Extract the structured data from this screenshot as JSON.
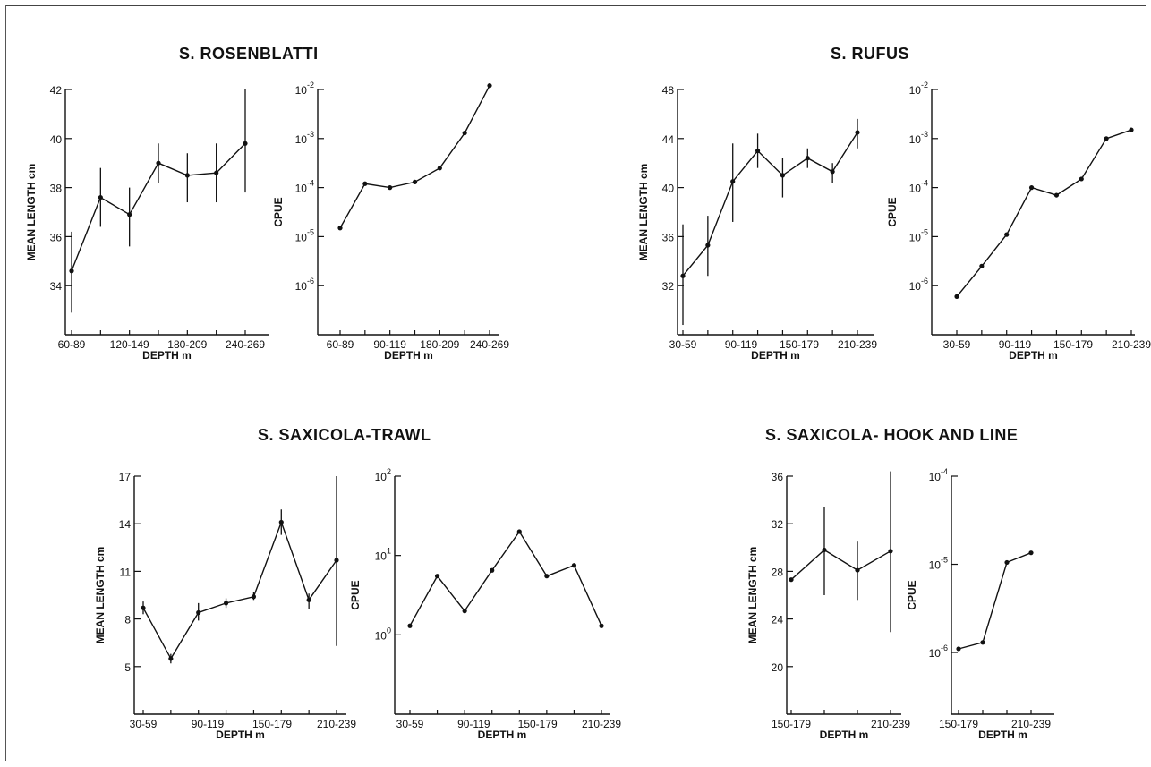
{
  "groups": [
    {
      "title": "S. ROSENBLATTI"
    },
    {
      "title": "S. RUFUS"
    },
    {
      "title": "S. SAXICOLA-TRAWL"
    },
    {
      "title": "S. SAXICOLA- HOOK AND LINE"
    }
  ],
  "chart_data": [
    {
      "id": "rosenblatti-length",
      "type": "line",
      "title": "",
      "xlabel": "DEPTH m",
      "ylabel": "MEAN LENGTH cm",
      "scale": "linear",
      "ylim": [
        32,
        42
      ],
      "yticks": [
        34,
        36,
        38,
        40,
        42
      ],
      "ytick_labels": [
        "34",
        "36",
        "38",
        "40",
        "42"
      ],
      "xtick_labels": [
        "60-89",
        "120-149",
        "180-209",
        "240-269"
      ],
      "points": [
        {
          "y": 34.6,
          "lo": 32.9,
          "hi": 36.2
        },
        {
          "y": 37.6,
          "lo": 36.4,
          "hi": 38.8
        },
        {
          "y": 36.9,
          "lo": 35.6,
          "hi": 38.0
        },
        {
          "y": 39.0,
          "lo": 38.2,
          "hi": 39.8
        },
        {
          "y": 38.5,
          "lo": 37.4,
          "hi": 39.4
        },
        {
          "y": 38.6,
          "lo": 37.4,
          "hi": 39.8
        },
        {
          "y": 39.8,
          "lo": 37.8,
          "hi": 42.0
        }
      ]
    },
    {
      "id": "rosenblatti-cpue",
      "type": "line",
      "title": "",
      "xlabel": "DEPTH m",
      "ylabel": "CPUE",
      "scale": "log",
      "ylim_exp": [
        -7,
        -2
      ],
      "yticks": [
        -6,
        -5,
        -4,
        -3,
        -2
      ],
      "ytick_labels": [
        "10-6",
        "10-5",
        "10-4",
        "10-3",
        "10-2"
      ],
      "xtick_labels": [
        "60-89",
        "90-119",
        "180-209",
        "240-269"
      ],
      "points": [
        {
          "y": 1.5e-05
        },
        {
          "y": 0.00012
        },
        {
          "y": 0.0001
        },
        {
          "y": 0.00013
        },
        {
          "y": 0.00025
        },
        {
          "y": 0.0013
        },
        {
          "y": 0.012
        }
      ]
    },
    {
      "id": "rufus-length",
      "type": "line",
      "title": "",
      "xlabel": "DEPTH m",
      "ylabel": "MEAN LENGTH cm",
      "scale": "linear",
      "ylim": [
        28,
        48
      ],
      "yticks": [
        32,
        36,
        40,
        44,
        48
      ],
      "ytick_labels": [
        "32",
        "36",
        "40",
        "44",
        "48"
      ],
      "xtick_labels": [
        "30-59",
        "90-119",
        "150-179",
        "210-239"
      ],
      "points": [
        {
          "y": 32.8,
          "lo": 28.8,
          "hi": 37.0
        },
        {
          "y": 35.3,
          "lo": 32.8,
          "hi": 37.7
        },
        {
          "y": 40.5,
          "lo": 37.2,
          "hi": 43.6
        },
        {
          "y": 43.0,
          "lo": 41.6,
          "hi": 44.4
        },
        {
          "y": 41.0,
          "lo": 39.2,
          "hi": 42.4
        },
        {
          "y": 42.4,
          "lo": 41.6,
          "hi": 43.2
        },
        {
          "y": 41.3,
          "lo": 40.4,
          "hi": 42.0
        },
        {
          "y": 44.5,
          "lo": 43.2,
          "hi": 45.6
        }
      ]
    },
    {
      "id": "rufus-cpue",
      "type": "line",
      "title": "",
      "xlabel": "DEPTH m",
      "ylabel": "CPUE",
      "scale": "log",
      "ylim_exp": [
        -7,
        -2
      ],
      "yticks": [
        -6,
        -5,
        -4,
        -3,
        -2
      ],
      "ytick_labels": [
        "10-6",
        "10-5",
        "10-4",
        "10-3",
        "10-2"
      ],
      "xtick_labels": [
        "30-59",
        "90-119",
        "150-179",
        "210-239"
      ],
      "points": [
        {
          "y": 6e-07
        },
        {
          "y": 2.5e-06
        },
        {
          "y": 1.1e-05
        },
        {
          "y": 0.0001
        },
        {
          "y": 7e-05
        },
        {
          "y": 0.00015
        },
        {
          "y": 0.001
        },
        {
          "y": 0.0015
        }
      ]
    },
    {
      "id": "saxicola-trawl-length",
      "type": "line",
      "title": "",
      "xlabel": "DEPTH m",
      "ylabel": "MEAN LENGTH cm",
      "scale": "linear",
      "ylim": [
        2,
        17
      ],
      "yticks": [
        5,
        8,
        11,
        14,
        17
      ],
      "ytick_labels": [
        "5",
        "8",
        "11",
        "14",
        "17"
      ],
      "xtick_labels": [
        "30-59",
        "90-119",
        "150-179",
        "210-239"
      ],
      "points": [
        {
          "y": 8.7,
          "lo": 8.3,
          "hi": 9.1
        },
        {
          "y": 5.5,
          "lo": 5.2,
          "hi": 5.8
        },
        {
          "y": 8.4,
          "lo": 7.9,
          "hi": 9.0
        },
        {
          "y": 9.0,
          "lo": 8.7,
          "hi": 9.3
        },
        {
          "y": 9.4,
          "lo": 9.2,
          "hi": 9.7
        },
        {
          "y": 14.1,
          "lo": 13.3,
          "hi": 14.9
        },
        {
          "y": 9.2,
          "lo": 8.6,
          "hi": 9.6
        },
        {
          "y": 11.7,
          "lo": 6.3,
          "hi": 17.0
        }
      ]
    },
    {
      "id": "saxicola-trawl-cpue",
      "type": "line",
      "title": "",
      "xlabel": "DEPTH m",
      "ylabel": "CPUE",
      "scale": "log",
      "ylim_exp": [
        -1,
        2
      ],
      "yticks": [
        0,
        1,
        2
      ],
      "ytick_labels": [
        "100",
        "101",
        "102"
      ],
      "xtick_labels": [
        "30-59",
        "90-119",
        "150-179",
        "210-239"
      ],
      "points": [
        {
          "y": 1.3
        },
        {
          "y": 5.5
        },
        {
          "y": 2.0
        },
        {
          "y": 6.5
        },
        {
          "y": 20
        },
        {
          "y": 5.5
        },
        {
          "y": 7.5
        },
        {
          "y": 1.3
        }
      ]
    },
    {
      "id": "saxicola-hook-length",
      "type": "line",
      "title": "",
      "xlabel": "DEPTH m",
      "ylabel": "MEAN LENGTH cm",
      "scale": "linear",
      "ylim": [
        16,
        36
      ],
      "yticks": [
        20,
        24,
        28,
        32,
        36
      ],
      "ytick_labels": [
        "20",
        "24",
        "28",
        "32",
        "36"
      ],
      "xtick_labels": [
        "150-179",
        "210-239"
      ],
      "points": [
        {
          "y": 27.3,
          "lo": null,
          "hi": null
        },
        {
          "y": 29.8,
          "lo": 26.0,
          "hi": 33.4
        },
        {
          "y": 28.1,
          "lo": 25.6,
          "hi": 30.5
        },
        {
          "y": 29.7,
          "lo": 22.9,
          "hi": 36.4
        }
      ]
    },
    {
      "id": "saxicola-hook-cpue",
      "type": "line",
      "title": "",
      "xlabel": "DEPTH m",
      "ylabel": "CPUE",
      "scale": "log",
      "ylim_exp": [
        -6.7,
        -4
      ],
      "yticks": [
        -6,
        -5,
        -4
      ],
      "ytick_labels": [
        "10-6",
        "10-5",
        "10-4"
      ],
      "xtick_labels": [
        "150-179",
        "210-239"
      ],
      "points": [
        {
          "y": 1.1e-06
        },
        {
          "y": 1.3e-06
        },
        {
          "y": 1.05e-05
        },
        {
          "y": 1.35e-05
        }
      ]
    }
  ]
}
